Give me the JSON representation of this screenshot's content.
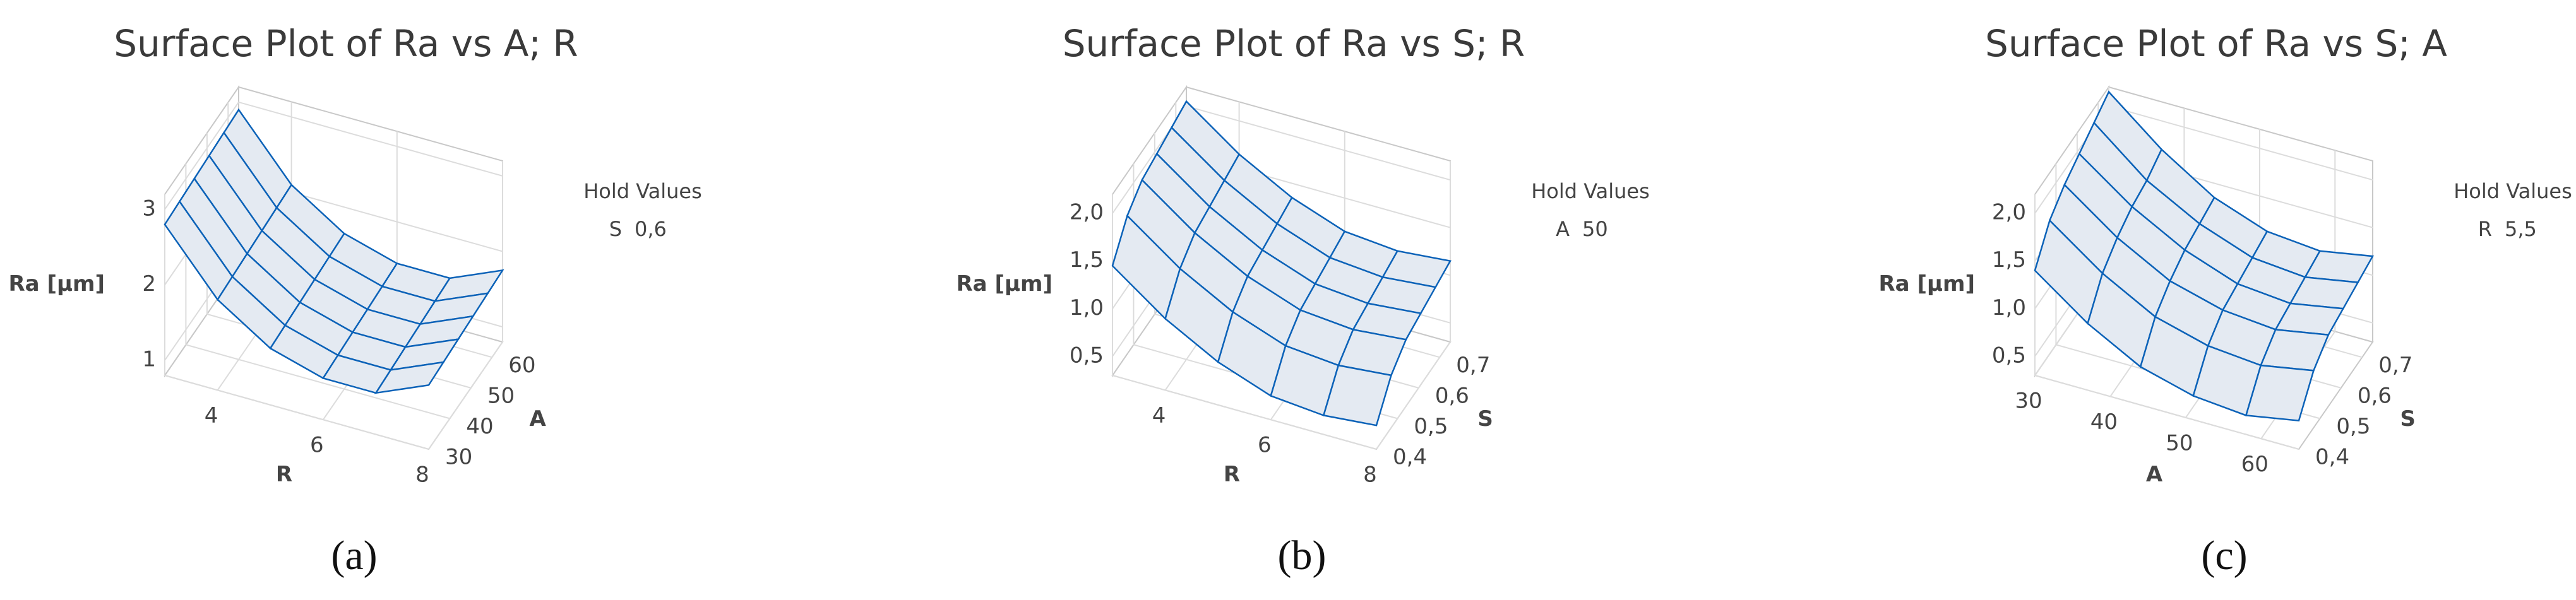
{
  "chart_data": [
    {
      "type": "surface",
      "title": "Surface Plot of Ra vs A; R",
      "caption": "(a)",
      "x_label": "R",
      "y_label": "A",
      "z_label": "Ra [µm]",
      "hold_title": "Hold Values",
      "hold_variable": "S",
      "hold_value": "0,6",
      "xlim": [
        3,
        8
      ],
      "ylim": [
        30,
        65
      ],
      "zlim": [
        0.8,
        3.2
      ],
      "xticks": [
        4,
        6,
        8
      ],
      "yticks": [
        30,
        40,
        50,
        60
      ],
      "zticks": [
        1,
        2,
        3
      ],
      "x": [
        3,
        4,
        5,
        6,
        7,
        8
      ],
      "y": [
        30,
        37,
        44,
        51,
        58,
        65
      ],
      "z": [
        [
          2.8,
          2.0,
          1.55,
          1.35,
          1.35,
          1.65
        ],
        [
          2.82,
          2.02,
          1.57,
          1.37,
          1.37,
          1.67
        ],
        [
          2.84,
          2.04,
          1.59,
          1.39,
          1.39,
          1.69
        ],
        [
          2.86,
          2.06,
          1.61,
          1.41,
          1.41,
          1.71
        ],
        [
          2.88,
          2.08,
          1.63,
          1.43,
          1.43,
          1.73
        ],
        [
          2.9,
          2.1,
          1.65,
          1.45,
          1.45,
          1.75
        ]
      ]
    },
    {
      "type": "surface",
      "title": "Surface Plot of Ra vs S; R",
      "caption": "(b)",
      "x_label": "R",
      "y_label": "S",
      "z_label": "Ra [µm]",
      "hold_title": "Hold Values",
      "hold_variable": "A",
      "hold_value": "50",
      "xlim": [
        3,
        8
      ],
      "ylim": [
        0.4,
        0.75
      ],
      "zlim": [
        0.3,
        2.2
      ],
      "xticks": [
        4,
        6,
        8
      ],
      "yticks": [
        {
          "value": 0.4,
          "label": "0,4"
        },
        {
          "value": 0.5,
          "label": "0,5"
        },
        {
          "value": 0.6,
          "label": "0,6"
        },
        {
          "value": 0.7,
          "label": "0,7"
        }
      ],
      "zticks": [
        {
          "value": 0.5,
          "label": "0,5"
        },
        {
          "value": 1.0,
          "label": "1,0"
        },
        {
          "value": 1.5,
          "label": "1,5"
        },
        {
          "value": 2.0,
          "label": "2,0"
        }
      ],
      "x": [
        3,
        4,
        5,
        6,
        7,
        8
      ],
      "y": [
        0.4,
        0.47,
        0.54,
        0.61,
        0.68,
        0.75
      ],
      "z": [
        [
          1.45,
          1.05,
          0.75,
          0.55,
          0.5,
          0.55
        ],
        [
          1.75,
          1.35,
          1.05,
          0.85,
          0.8,
          0.85
        ],
        [
          1.9,
          1.5,
          1.2,
          1.0,
          0.95,
          1.0
        ],
        [
          1.95,
          1.55,
          1.25,
          1.05,
          1.0,
          1.05
        ],
        [
          2.0,
          1.6,
          1.3,
          1.1,
          1.05,
          1.1
        ],
        [
          2.05,
          1.65,
          1.35,
          1.15,
          1.1,
          1.15
        ]
      ]
    },
    {
      "type": "surface",
      "title": "Surface Plot of Ra vs S; A",
      "caption": "(c)",
      "x_label": "A",
      "y_label": "S",
      "z_label": "Ra [µm]",
      "hold_title": "Hold Values",
      "hold_variable": "R",
      "hold_value": "5,5",
      "xlim": [
        30,
        65
      ],
      "ylim": [
        0.4,
        0.75
      ],
      "zlim": [
        0.3,
        2.2
      ],
      "xticks": [
        30,
        40,
        50,
        60
      ],
      "yticks": [
        {
          "value": 0.4,
          "label": "0,4"
        },
        {
          "value": 0.5,
          "label": "0,5"
        },
        {
          "value": 0.6,
          "label": "0,6"
        },
        {
          "value": 0.7,
          "label": "0,7"
        }
      ],
      "zticks": [
        {
          "value": 0.5,
          "label": "0,5"
        },
        {
          "value": 1.0,
          "label": "1,0"
        },
        {
          "value": 1.5,
          "label": "1,5"
        },
        {
          "value": 2.0,
          "label": "2,0"
        }
      ],
      "x": [
        30,
        37,
        44,
        51,
        58,
        65
      ],
      "y": [
        0.4,
        0.47,
        0.54,
        0.61,
        0.68,
        0.75
      ],
      "z": [
        [
          1.4,
          1.0,
          0.7,
          0.55,
          0.5,
          0.6
        ],
        [
          1.7,
          1.3,
          1.0,
          0.85,
          0.8,
          0.9
        ],
        [
          1.85,
          1.45,
          1.15,
          1.0,
          0.95,
          1.05
        ],
        [
          1.95,
          1.55,
          1.25,
          1.05,
          1.0,
          1.1
        ],
        [
          2.05,
          1.6,
          1.3,
          1.1,
          1.05,
          1.15
        ],
        [
          2.15,
          1.7,
          1.35,
          1.15,
          1.1,
          1.2
        ]
      ]
    }
  ]
}
